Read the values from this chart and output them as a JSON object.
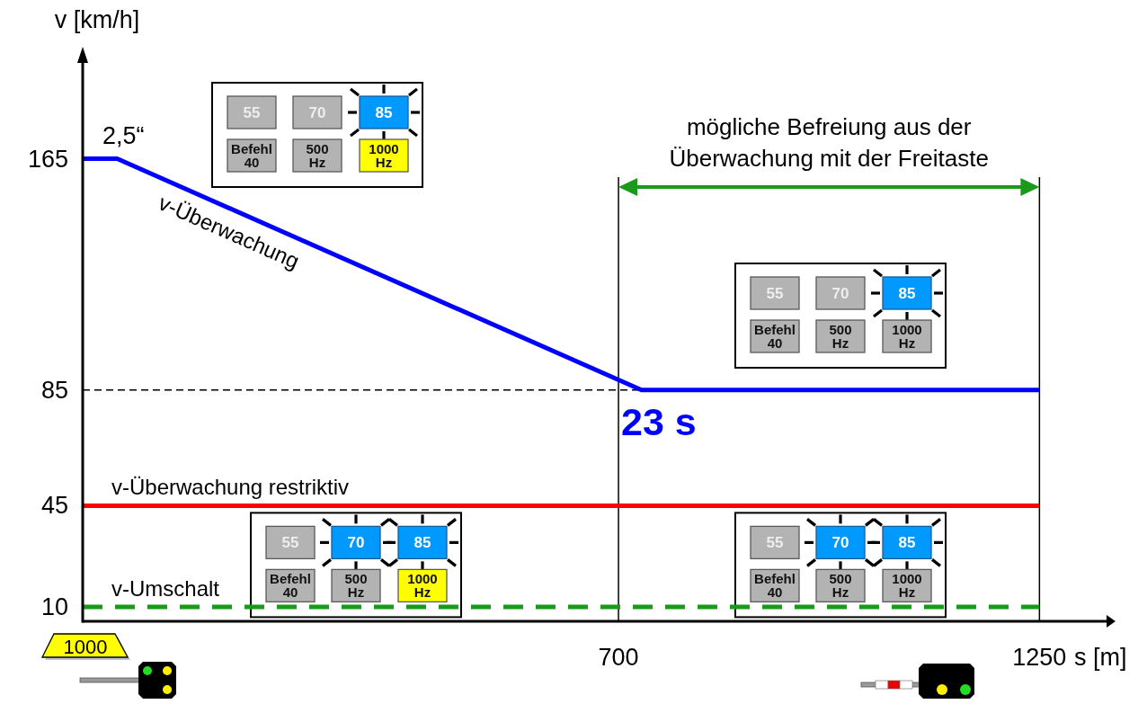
{
  "chart_data": {
    "type": "line",
    "ylabel": "v [km/h]",
    "xlabel": "s [m]",
    "annotations": [
      "2,5“",
      "23 s",
      "mögliche Befreiung aus der Überwachung mit der Freitaste",
      "1000",
      "55",
      "70",
      "85",
      "Befehl 40",
      "500 Hz",
      "1000 Hz"
    ],
    "series": [
      {
        "name": "v-Überwachung",
        "color": "#0000ff",
        "x": [
          0,
          45,
          730,
          1250
        ],
        "values": [
          165,
          165,
          85,
          85
        ]
      },
      {
        "name": "v-Überwachung restriktiv",
        "color": "#ff0000",
        "x": [
          0,
          1250
        ],
        "values": [
          45,
          45
        ]
      },
      {
        "name": "v-Umschalt",
        "color": "#1a9a1a",
        "x": [
          0,
          1250
        ],
        "values": [
          10,
          10
        ],
        "line_style": "dashed"
      }
    ],
    "xlim": [
      0,
      1340
    ],
    "ylim": [
      5,
      200
    ],
    "xticks": [
      700,
      1250
    ],
    "yticks": [
      10,
      45,
      85,
      165
    ],
    "ref_lines": [
      {
        "axis": "y",
        "value": 85,
        "line_style": "dashed",
        "color": "#000000"
      },
      {
        "axis": "x",
        "value": 700,
        "color": "#000000"
      },
      {
        "axis": "x",
        "value": 1250,
        "color": "#000000"
      }
    ],
    "grid": false,
    "legend": false,
    "marker": "none"
  }
}
